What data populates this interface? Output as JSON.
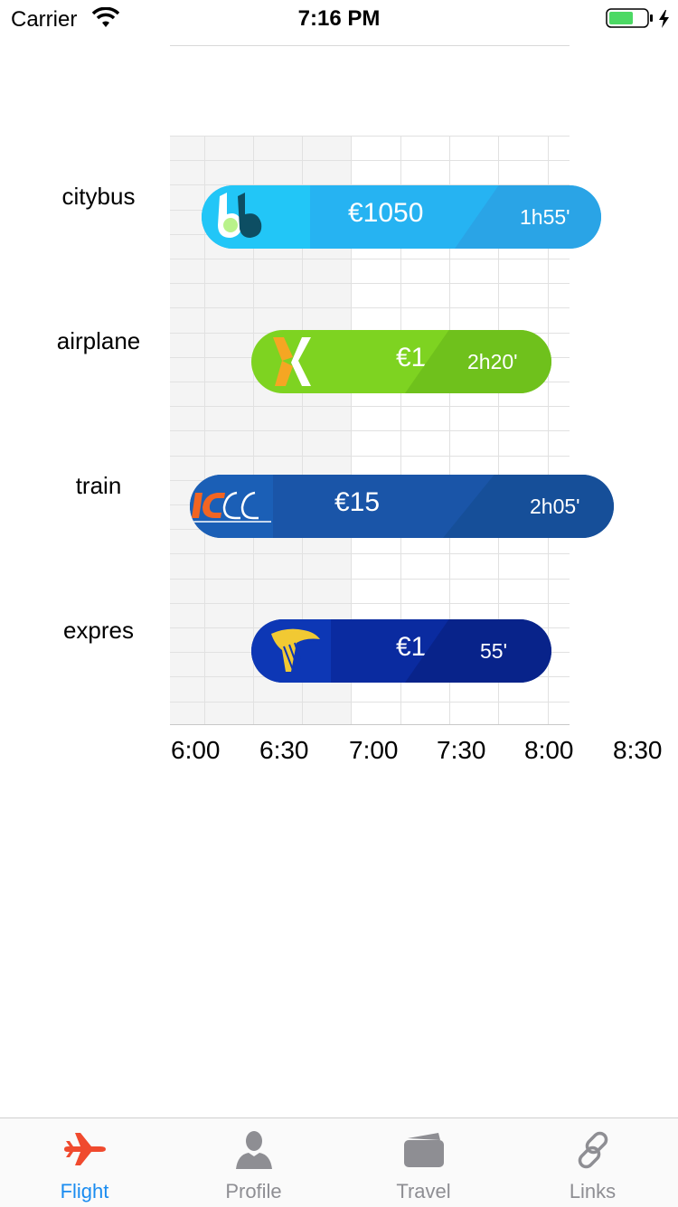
{
  "status_bar": {
    "carrier": "Carrier",
    "time": "7:16 PM"
  },
  "chart": {
    "rows": [
      {
        "label": "citybus",
        "price": "€1050",
        "duration": "1h55'"
      },
      {
        "label": "airplane",
        "price": "€1",
        "duration": "2h20'"
      },
      {
        "label": "train",
        "price": "€15",
        "duration": "2h05'"
      },
      {
        "label": "expres",
        "price": "€1",
        "duration": "55'"
      }
    ],
    "x_ticks": [
      "6:00",
      "6:30",
      "7:00",
      "7:30",
      "8:00",
      "8:30"
    ]
  },
  "tabs": [
    {
      "label": "Flight",
      "icon": "airplane-icon",
      "active": true
    },
    {
      "label": "Profile",
      "icon": "person-icon",
      "active": false
    },
    {
      "label": "Travel",
      "icon": "wallet-icon",
      "active": false
    },
    {
      "label": "Links",
      "icon": "link-icon",
      "active": false
    }
  ],
  "colors": {
    "accent_active": "#1a8cf0",
    "flight_icon": "#f04a2e",
    "citybus": "#26b3f2",
    "airplane": "#7ed321",
    "train": "#1a55a8",
    "expres": "#0a2ba0"
  }
}
